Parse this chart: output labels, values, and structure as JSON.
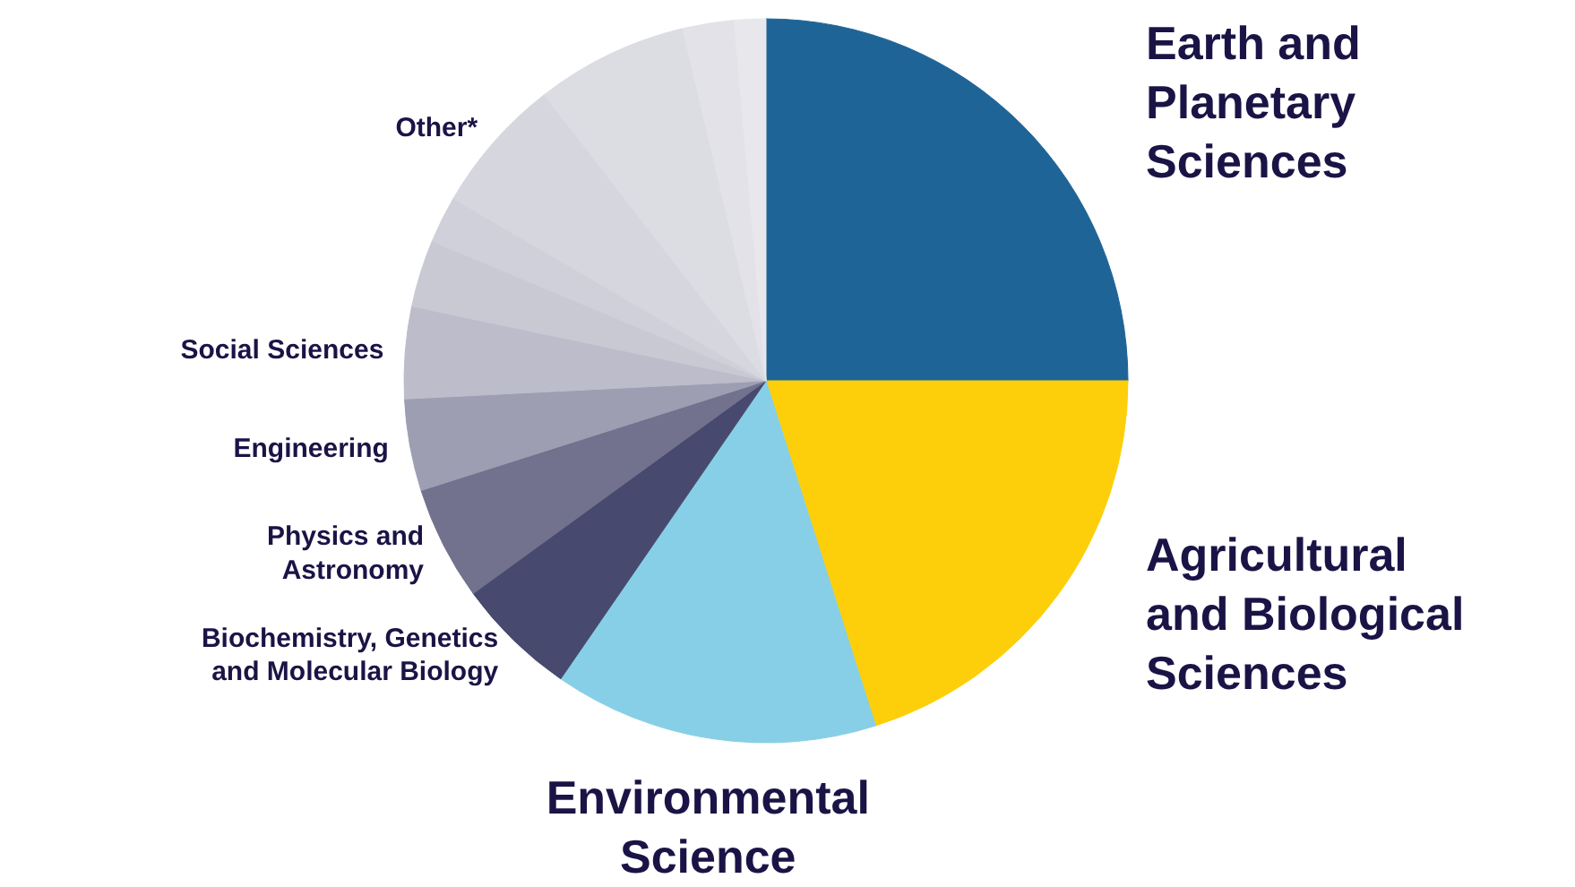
{
  "chart_data": {
    "type": "pie",
    "categories": [
      "Earth and\nPlanetary\nSciences",
      "Agricultural\nand Biological\nSciences",
      "Environmental\nScience",
      "Biochemistry, Genetics\nand Molecular Biology",
      "Physics and\nAstronomy",
      "Engineering",
      "Social Sciences",
      null,
      null,
      "Other*",
      null,
      null,
      null
    ],
    "values": [
      25,
      20.1,
      14.5,
      5.4,
      5.1,
      4.1,
      4.1,
      3.0,
      2.1,
      6.1,
      6.8,
      2.3,
      1.4
    ],
    "colors": [
      "#1f6496",
      "#fccf0a",
      "#87cfe6",
      "#474a6e",
      "#72728f",
      "#9e9eb3",
      "#bcbccb",
      "#c9c9d4",
      "#d0d0da",
      "#d6d6de",
      "#dcdce3",
      "#e2e2e8",
      "#e8e8ec"
    ]
  }
}
